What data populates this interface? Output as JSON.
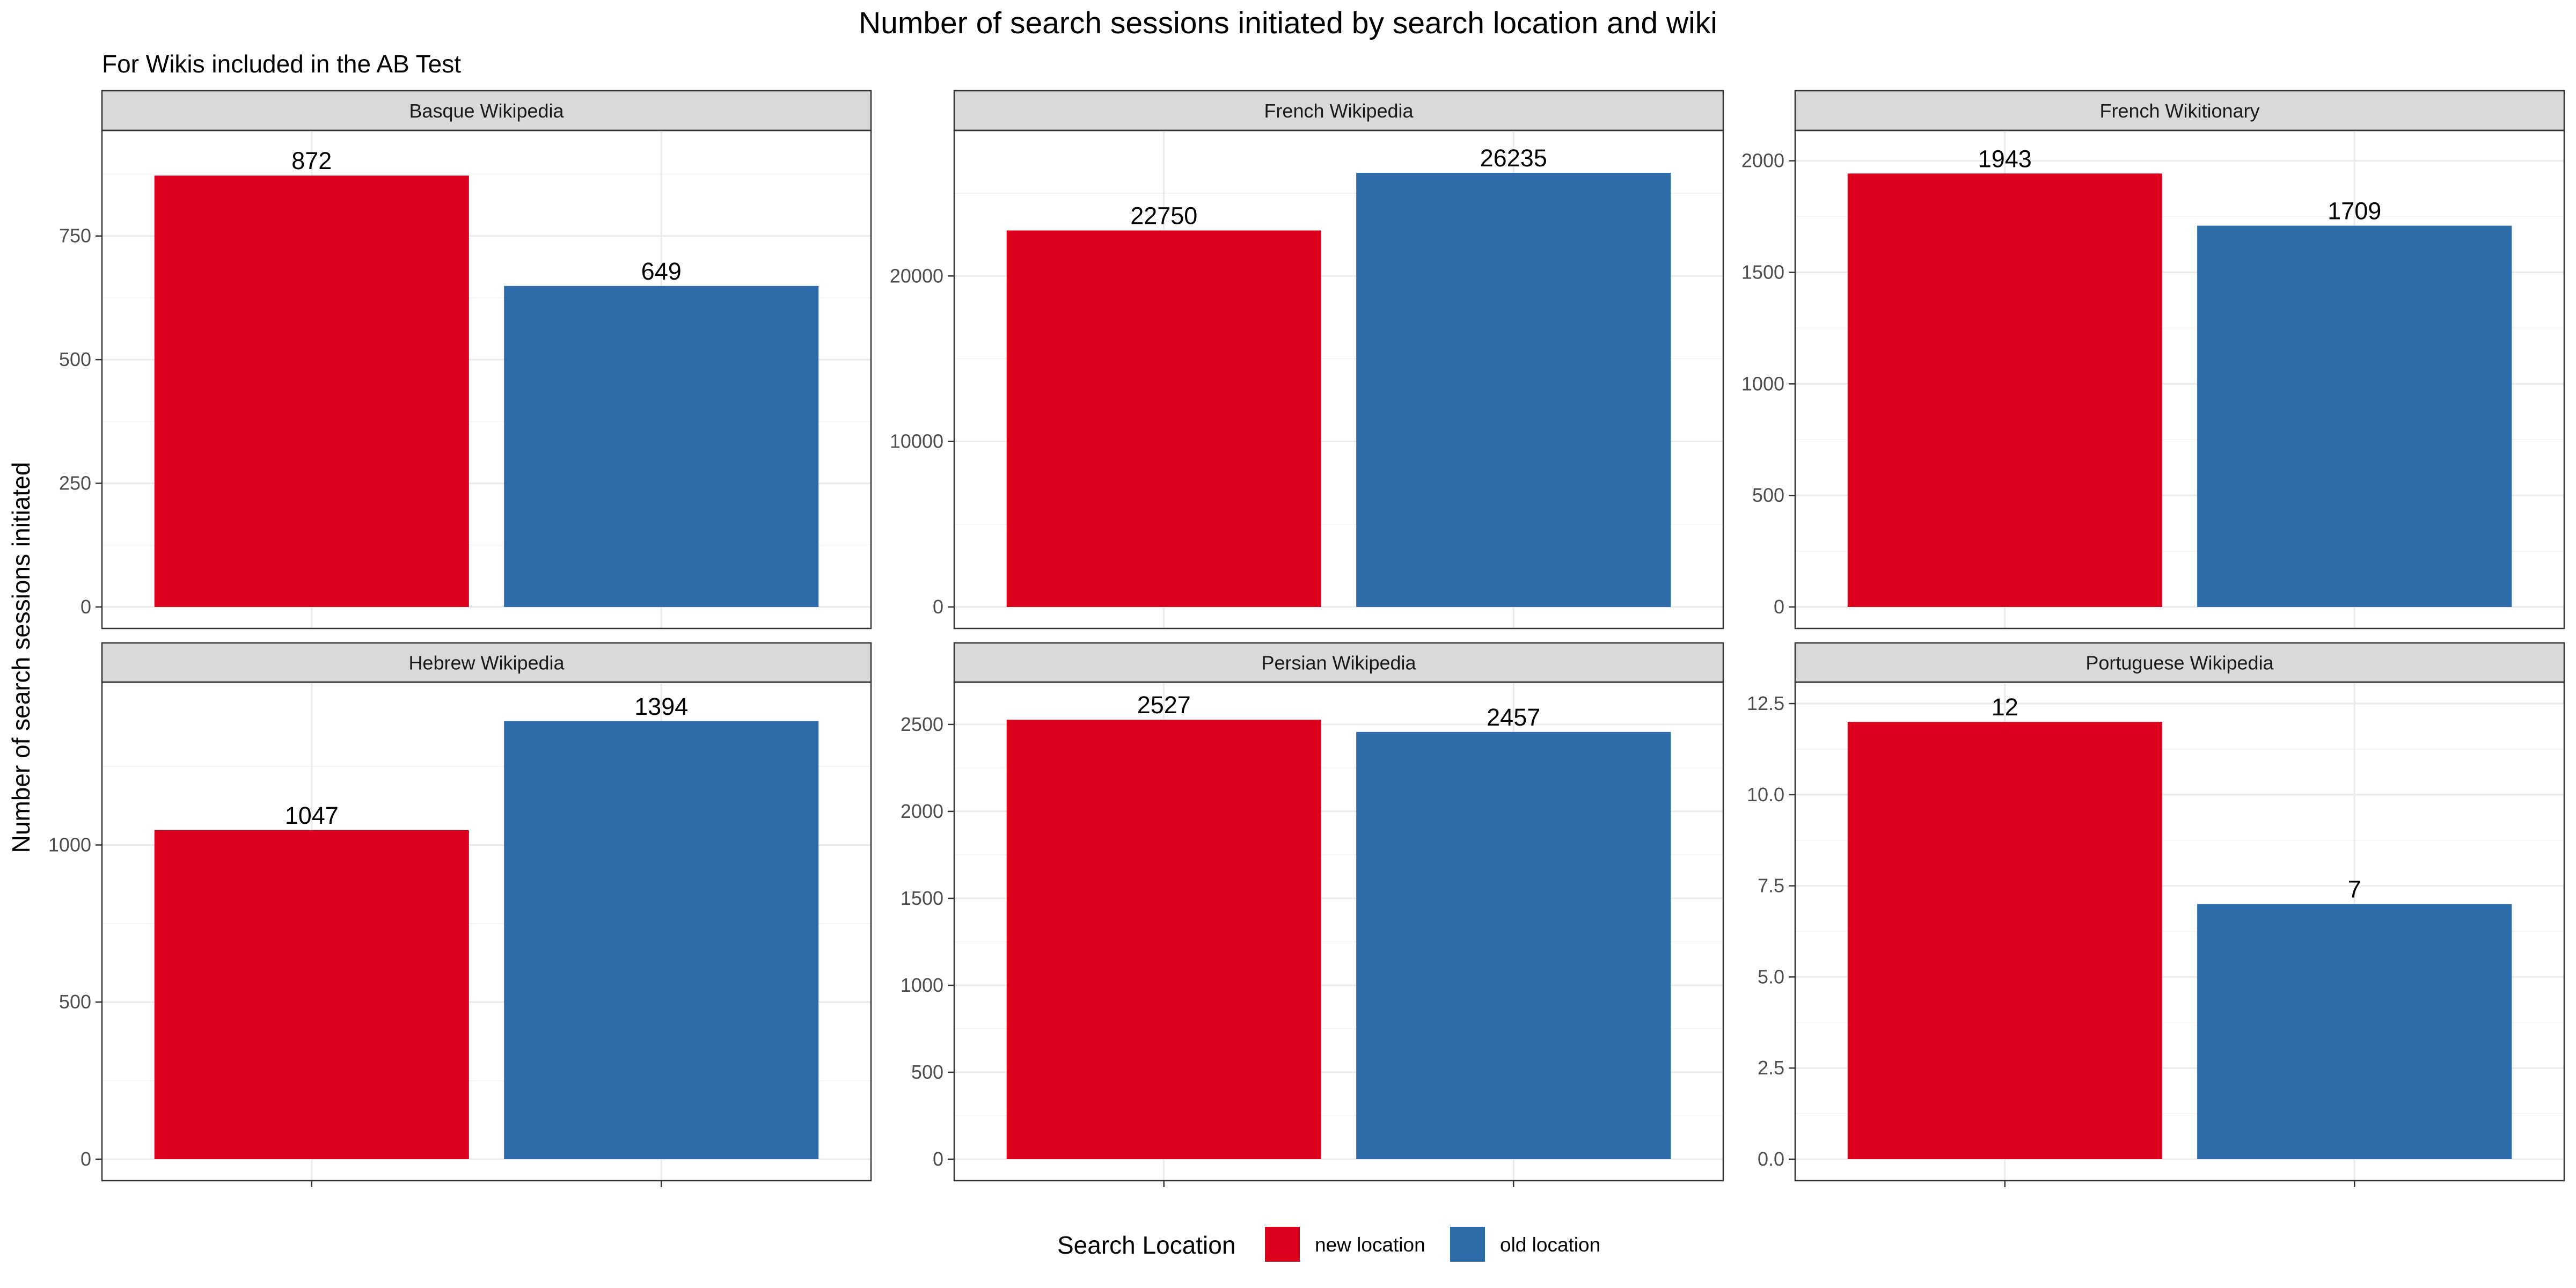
{
  "chart_data": {
    "type": "bar",
    "title": "Number of search sessions initiated by search location and wiki",
    "subtitle": "For Wikis included in the AB Test",
    "ylabel": "Number of search sessions initiated",
    "xlabel": "",
    "grid": true,
    "legend": {
      "title": "Search Location",
      "placement": "bottom",
      "entries": [
        "new location",
        "old location"
      ]
    },
    "colors": {
      "new location": "#db001b",
      "old location": "#2d6ba9"
    },
    "categories": [
      "new location",
      "old location"
    ],
    "panels": [
      {
        "name": "Basque Wikipedia",
        "values": [
          872,
          649
        ],
        "ylim": [
          0,
          920
        ],
        "yticks": [
          0,
          250,
          500,
          750
        ]
      },
      {
        "name": "French Wikipedia",
        "values": [
          22750,
          26235
        ],
        "ylim": [
          0,
          27500
        ],
        "yticks": [
          0,
          10000,
          20000
        ]
      },
      {
        "name": "French Wikitionary",
        "values": [
          1943,
          1709
        ],
        "ylim": [
          0,
          2040
        ],
        "yticks": [
          0,
          500,
          1000,
          1500,
          2000
        ]
      },
      {
        "name": "Hebrew Wikipedia",
        "values": [
          1047,
          1394
        ],
        "ylim": [
          0,
          1450
        ],
        "yticks": [
          0,
          500,
          1000
        ]
      },
      {
        "name": "Persian Wikipedia",
        "values": [
          2527,
          2457
        ],
        "ylim": [
          0,
          2620
        ],
        "yticks": [
          0,
          500,
          1000,
          1500,
          2000,
          2500
        ]
      },
      {
        "name": "Portuguese Wikipedia",
        "values": [
          12,
          7
        ],
        "ylim": [
          0,
          12.5
        ],
        "yticks": [
          0.0,
          2.5,
          5.0,
          7.5,
          10.0,
          12.5
        ],
        "tick_decimals": 1
      }
    ]
  }
}
